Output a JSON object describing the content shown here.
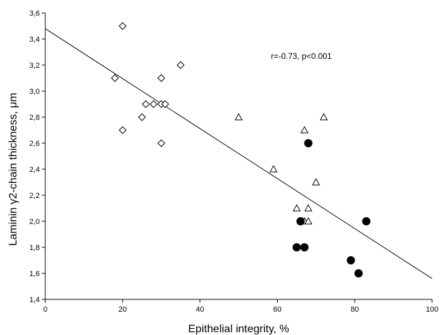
{
  "chart_data": {
    "type": "scatter",
    "xlabel": "Epithelial integrity, %",
    "ylabel": "Laminin γ2-chain thickness,  μm",
    "xlim": [
      0,
      100
    ],
    "ylim": [
      1.4,
      3.6
    ],
    "x_ticks": [
      "0",
      "20",
      "40",
      "60",
      "80",
      "100"
    ],
    "y_ticks": [
      "1,4",
      "1,6",
      "1,8",
      "2,0",
      "2,2",
      "2,4",
      "2,6",
      "2,8",
      "3,0",
      "3,2",
      "3,4",
      "3,6"
    ],
    "annotation": "r=-0.73, p<0.001",
    "grid": false,
    "legend": "none",
    "series": [
      {
        "marker": "diamond-open",
        "points": [
          [
            18,
            3.1
          ],
          [
            20,
            3.5
          ],
          [
            20,
            2.7
          ],
          [
            25,
            2.8
          ],
          [
            26,
            2.9
          ],
          [
            28,
            2.9
          ],
          [
            30,
            3.1
          ],
          [
            30,
            2.9
          ],
          [
            30,
            2.6
          ],
          [
            31,
            2.9
          ],
          [
            35,
            3.2
          ]
        ]
      },
      {
        "marker": "triangle-open",
        "points": [
          [
            50,
            2.8
          ],
          [
            59,
            2.4
          ],
          [
            65,
            2.1
          ],
          [
            67,
            2.7
          ],
          [
            67,
            2.0
          ],
          [
            68,
            2.1
          ],
          [
            68,
            2.0
          ],
          [
            70,
            2.3
          ],
          [
            72,
            2.8
          ]
        ]
      },
      {
        "marker": "circle-filled",
        "points": [
          [
            65,
            1.8
          ],
          [
            66,
            2.0
          ],
          [
            67,
            1.8
          ],
          [
            68,
            2.6
          ],
          [
            79,
            1.7
          ],
          [
            81,
            1.6
          ],
          [
            83,
            2.0
          ]
        ]
      }
    ],
    "regression_line": {
      "points": [
        [
          0,
          3.48
        ],
        [
          100,
          1.56
        ]
      ]
    }
  }
}
